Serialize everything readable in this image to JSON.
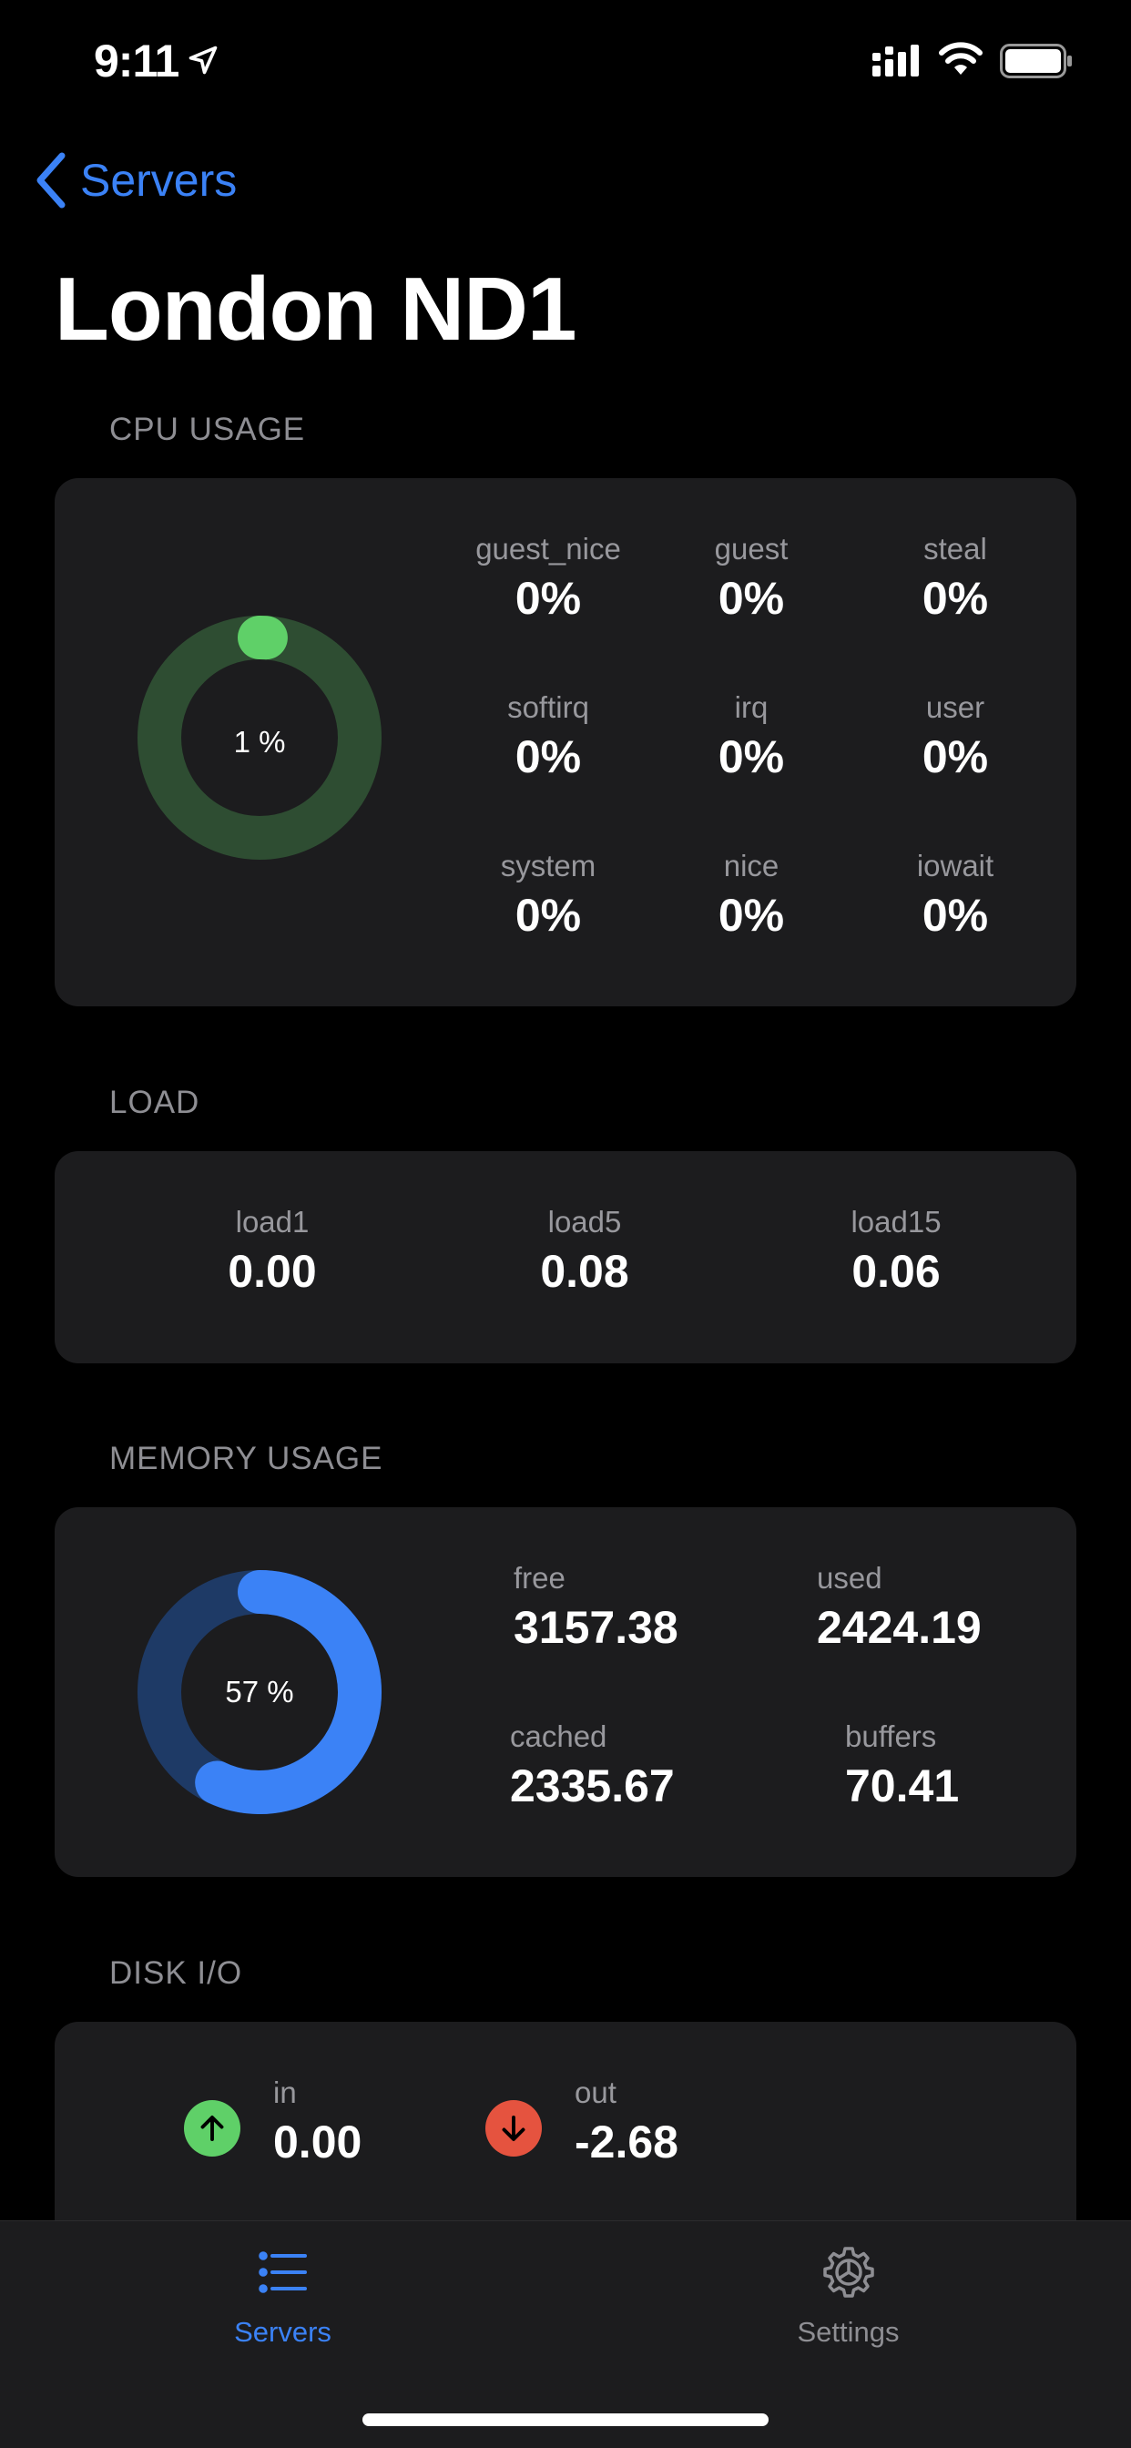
{
  "status_bar": {
    "time": "9:11"
  },
  "nav": {
    "back_label": "Servers",
    "title": "London ND1"
  },
  "cpu": {
    "header": "CPU USAGE",
    "percent_text": "1 %",
    "percent": 1,
    "ring_color": "#2e4d32",
    "fill_color": "#5fd068",
    "stats": [
      {
        "label": "guest_nice",
        "value": "0%"
      },
      {
        "label": "guest",
        "value": "0%"
      },
      {
        "label": "steal",
        "value": "0%"
      },
      {
        "label": "softirq",
        "value": "0%"
      },
      {
        "label": "irq",
        "value": "0%"
      },
      {
        "label": "user",
        "value": "0%"
      },
      {
        "label": "system",
        "value": "0%"
      },
      {
        "label": "nice",
        "value": "0%"
      },
      {
        "label": "iowait",
        "value": "0%"
      }
    ]
  },
  "load": {
    "header": "LOAD",
    "stats": [
      {
        "label": "load1",
        "value": "0.00"
      },
      {
        "label": "load5",
        "value": "0.08"
      },
      {
        "label": "load15",
        "value": "0.06"
      }
    ]
  },
  "memory": {
    "header": "MEMORY USAGE",
    "percent_text": "57 %",
    "percent": 57,
    "ring_color": "#1e3a66",
    "fill_color": "#3b82f6",
    "stats": [
      {
        "label": "free",
        "value": "3157.38"
      },
      {
        "label": "used",
        "value": "2424.19"
      },
      {
        "label": "cached",
        "value": "2335.67"
      },
      {
        "label": "buffers",
        "value": "70.41"
      }
    ]
  },
  "disk": {
    "header": "DISK I/O",
    "in": {
      "label": "in",
      "value": "0.00",
      "icon": "arrow-up-icon",
      "color": "#5fd068"
    },
    "out": {
      "label": "out",
      "value": "-2.68",
      "icon": "arrow-down-icon",
      "color": "#e5533f"
    }
  },
  "tabs": [
    {
      "label": "Servers",
      "icon": "list-icon",
      "active": true
    },
    {
      "label": "Settings",
      "icon": "gear-icon",
      "active": false
    }
  ],
  "colors": {
    "accent": "#3b82f6",
    "inactive": "#8e8e93"
  }
}
